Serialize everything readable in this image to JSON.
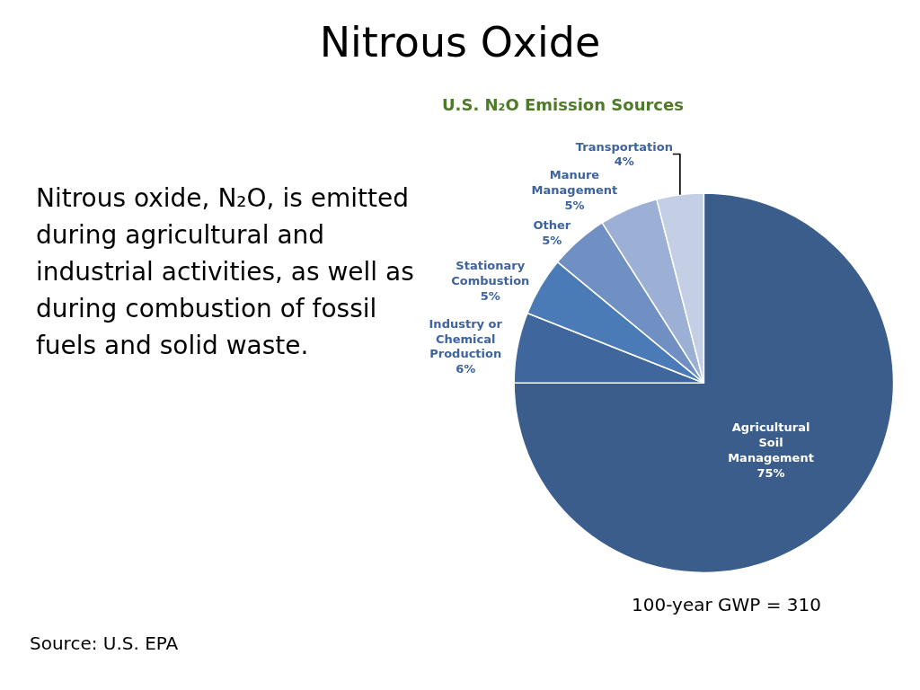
{
  "chart_data": {
    "type": "pie",
    "title": "Nitrous Oxide",
    "subtitle": "U.S. N₂O Emission Sources",
    "categories": [
      "Agricultural Soil Management",
      "Industry or Chemical Production",
      "Stationary Combustion",
      "Other",
      "Manure Management",
      "Transportation"
    ],
    "values": [
      75,
      6,
      5,
      5,
      5,
      4
    ],
    "value_labels": [
      "75%",
      "6%",
      "5%",
      "5%",
      "5%",
      "4%"
    ],
    "colors": [
      "#3b5d8b",
      "#40679d",
      "#4a7bb6",
      "#7090c4",
      "#9cb0d5",
      "#c4cfe6"
    ],
    "annotations": [
      "Nitrous oxide, N₂O, is emitted during agricultural and industrial activities, as well as during combustion of fossil fuels and solid waste.",
      "100-year GWP = 310",
      "Source: U.S. EPA"
    ],
    "legend": false
  }
}
